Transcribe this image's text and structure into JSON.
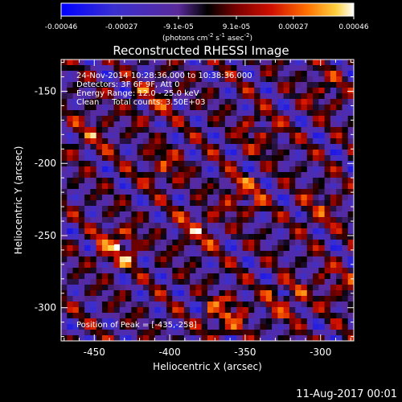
{
  "chart_data": {
    "type": "heatmap",
    "title": "Reconstructed RHESSI Image",
    "xlabel": "Heliocentric X (arcsec)",
    "ylabel": "Heliocentric Y (arcsec)",
    "xlim": [
      -472,
      -278
    ],
    "ylim": [
      -323,
      -128
    ],
    "xticks": [
      -450,
      -400,
      -350,
      -300
    ],
    "yticks": [
      -150,
      -200,
      -250,
      -300
    ],
    "colorbar": {
      "range": [
        -0.00046,
        0.00046
      ],
      "ticks": [
        "-0.00046",
        "-0.00027",
        "-9.1e-05",
        "9.1e-05",
        "0.00027",
        "0.00046"
      ],
      "units_prefix": "(photons cm",
      "units_sup1": "-2",
      "units_mid1": " s",
      "units_sup2": "-1",
      "units_mid2": " asec",
      "units_sup3": "-2",
      "units_suffix": ")"
    },
    "annotations": {
      "line1": "24-Nov-2014 10:28:36.000 to 10:38:36.000",
      "line2": "Detectors: 3F 6F 9F, Att 0",
      "line3": "Energy Range: 12.0 - 25.0 keV",
      "line4": "Clean     Total counts: 3.50E+03",
      "peak": "Position of Peak = [-435,-258]"
    },
    "peak": {
      "x": -435,
      "y": -258
    },
    "bright_sources": [
      {
        "x": -435,
        "y": -258,
        "value": 0.00046
      },
      {
        "x": -363,
        "y": -305,
        "value": 0.0004
      },
      {
        "x": -352,
        "y": -222,
        "value": 0.00035
      },
      {
        "x": -382,
        "y": -246,
        "value": 0.00033
      },
      {
        "x": -323,
        "y": -295,
        "value": 0.0003
      },
      {
        "x": -404,
        "y": -202,
        "value": 0.00028
      },
      {
        "x": -412,
        "y": -158,
        "value": 0.00027
      },
      {
        "x": -340,
        "y": -180,
        "value": 0.00026
      },
      {
        "x": -452,
        "y": -180,
        "value": 0.00025
      },
      {
        "x": -300,
        "y": -232,
        "value": 0.00024
      },
      {
        "x": -298,
        "y": -150,
        "value": 0.00022
      },
      {
        "x": -290,
        "y": -285,
        "value": 0.00024
      }
    ]
  },
  "footer": {
    "timestamp": "11-Aug-2017 00:01"
  }
}
